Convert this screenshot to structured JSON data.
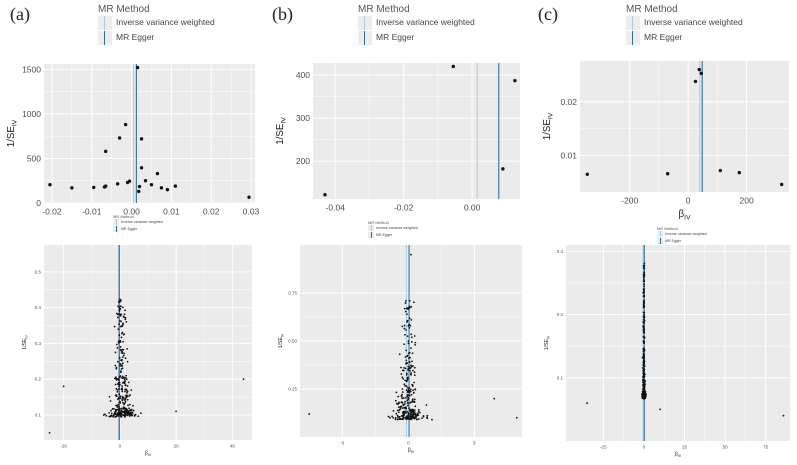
{
  "panel_labels": [
    "(a)",
    "(b)",
    "(c)"
  ],
  "colors": {
    "panel_bg": "#ebebeb",
    "grid": "#ffffff",
    "point": "#111111",
    "ivw_line": "#a6cde4",
    "egger_line": "#2e6e9e"
  },
  "legend": {
    "title": "MR Method",
    "items": [
      "Inverse variance weighted",
      "MR Egger"
    ]
  },
  "chart_data": [
    {
      "type": "scatter",
      "panel": "(a)-top",
      "title": "",
      "xlabel": "",
      "ylabel": "1/SE_IV",
      "ylabel_main": "1/SE",
      "ylabel_sub": "IV",
      "xlim": [
        -0.022,
        0.031
      ],
      "ylim": [
        0,
        1560
      ],
      "xticks": [
        -0.02,
        -0.01,
        0.0,
        0.01,
        0.02,
        0.03
      ],
      "xtick_labels": [
        "-0.02",
        "-0.01",
        "0.00",
        "0.01",
        "0.02",
        "0.03"
      ],
      "yticks": [
        0,
        500,
        1000,
        1500
      ],
      "ytick_labels": [
        "0",
        "500",
        "1000",
        "1500"
      ],
      "lines": [
        {
          "method": "ivw",
          "x": 0.0005
        },
        {
          "method": "egger",
          "x": 0.0012
        }
      ],
      "points": [
        [
          -0.0205,
          205
        ],
        [
          -0.015,
          170
        ],
        [
          -0.0095,
          175
        ],
        [
          -0.0068,
          180
        ],
        [
          -0.0065,
          580
        ],
        [
          -0.0065,
          190
        ],
        [
          -0.0035,
          215
        ],
        [
          -0.003,
          730
        ],
        [
          -0.0015,
          880
        ],
        [
          -0.001,
          230
        ],
        [
          -0.0005,
          245
        ],
        [
          0.0015,
          1520
        ],
        [
          0.0018,
          130
        ],
        [
          0.002,
          185
        ],
        [
          0.0025,
          395
        ],
        [
          0.0025,
          720
        ],
        [
          0.0035,
          250
        ],
        [
          0.005,
          205
        ],
        [
          0.0065,
          330
        ],
        [
          0.0075,
          170
        ],
        [
          0.009,
          150
        ],
        [
          0.011,
          190
        ],
        [
          0.0295,
          65
        ]
      ]
    },
    {
      "type": "scatter",
      "panel": "(b)-top",
      "title": "",
      "xlabel": "",
      "ylabel": "1/SE_IV",
      "ylabel_main": "1/SE",
      "ylabel_sub": "IV",
      "xlim": [
        -0.0465,
        0.014
      ],
      "ylim": [
        112,
        428
      ],
      "xticks": [
        -0.04,
        -0.02,
        0.0
      ],
      "xtick_labels": [
        "-0.04",
        "-0.02",
        "0.00"
      ],
      "yticks": [
        200,
        300,
        400
      ],
      "ytick_labels": [
        "200",
        "300",
        "400"
      ],
      "lines": [
        {
          "method": "ivw",
          "x": 0.0015
        },
        {
          "method": "egger",
          "x": 0.0078
        }
      ],
      "points": [
        [
          -0.043,
          122
        ],
        [
          -0.0055,
          420
        ],
        [
          0.009,
          182
        ],
        [
          0.0125,
          387
        ]
      ]
    },
    {
      "type": "scatter",
      "panel": "(c)-top",
      "title": "",
      "xlabel": "β_IV",
      "xlabel_main": "β",
      "xlabel_sub": "IV",
      "ylabel": "1/SE_IV",
      "ylabel_main": "1/SE",
      "ylabel_sub": "IV",
      "xlim": [
        -370,
        345
      ],
      "ylim": [
        0.0032,
        0.0276
      ],
      "xticks": [
        -200,
        0,
        200
      ],
      "xtick_labels": [
        "-200",
        "0",
        "200"
      ],
      "yticks": [
        0.01,
        0.02
      ],
      "ytick_labels": [
        "0.01",
        "0.02"
      ],
      "lines": [
        {
          "method": "ivw",
          "x": 40
        },
        {
          "method": "egger",
          "x": 48
        }
      ],
      "points": [
        [
          -345,
          0.0065
        ],
        [
          -70,
          0.0066
        ],
        [
          25,
          0.0238
        ],
        [
          38,
          0.026
        ],
        [
          45,
          0.0253
        ],
        [
          110,
          0.0072
        ],
        [
          175,
          0.0068
        ],
        [
          320,
          0.0046
        ]
      ]
    },
    {
      "type": "scatter",
      "panel": "(a)-bottom",
      "title": "",
      "xlabel": "β_IV",
      "xlabel_main": "β",
      "xlabel_sub": "IV",
      "ylabel": "1/SE_IV",
      "ylabel_main": "1/SE",
      "ylabel_sub": "IV",
      "xlim": [
        -27,
        47
      ],
      "ylim": [
        0.03,
        0.575
      ],
      "xticks": [
        -20,
        0,
        20,
        40
      ],
      "xtick_labels": [
        "-20",
        "0",
        "20",
        "40"
      ],
      "yticks": [
        0.1,
        0.2,
        0.3,
        0.4,
        0.5
      ],
      "ytick_labels": [
        "0.1",
        "0.2",
        "0.3",
        "0.4",
        "0.5"
      ],
      "lines": [
        {
          "method": "ivw",
          "x": -0.5
        },
        {
          "method": "egger",
          "x": -0.2
        }
      ],
      "cloud": {
        "n": 330,
        "center": 0.5,
        "spread": 7.5,
        "base": 0.1,
        "peak": 0.42,
        "seed": 11
      },
      "points": [
        [
          -25,
          0.05
        ],
        [
          44,
          0.2
        ],
        [
          -20,
          0.18
        ],
        [
          20,
          0.11
        ]
      ]
    },
    {
      "type": "scatter",
      "panel": "(b)-bottom",
      "title": "",
      "xlabel": "β_IV",
      "xlabel_main": "β",
      "xlabel_sub": "IV",
      "ylabel": "1/SE_IV",
      "ylabel_main": "1/SE",
      "ylabel_sub": "IV",
      "xlim": [
        -8.2,
        8.6
      ],
      "ylim": [
        0.0,
        1.0
      ],
      "xticks": [
        -5,
        0,
        5
      ],
      "xtick_labels": [
        "-5",
        "0",
        "5"
      ],
      "yticks": [
        0.25,
        0.5,
        0.75
      ],
      "ytick_labels": [
        "0.25",
        "0.50",
        "0.75"
      ],
      "lines": [
        {
          "method": "ivw",
          "x": -0.15
        },
        {
          "method": "egger",
          "x": 0.05
        }
      ],
      "cloud": {
        "n": 300,
        "center": 0.0,
        "spread": 1.9,
        "base": 0.1,
        "peak": 0.72,
        "seed": 23
      },
      "points": [
        [
          0.2,
          0.95
        ],
        [
          -7.5,
          0.12
        ],
        [
          8.2,
          0.1
        ],
        [
          6.5,
          0.2
        ]
      ]
    },
    {
      "type": "scatter",
      "panel": "(c)-bottom",
      "title": "",
      "xlabel": "β_IV",
      "xlabel_main": "β",
      "xlabel_sub": "IV",
      "ylabel": "1/SE_IV",
      "ylabel_main": "1/SE",
      "ylabel_sub": "IV",
      "xlim": [
        -48,
        90
      ],
      "ylim": [
        0.0,
        0.31
      ],
      "xticks": [
        -25,
        0,
        25,
        50,
        75
      ],
      "xtick_labels": [
        "-25",
        "0",
        "25",
        "50",
        "75"
      ],
      "yticks": [
        0.1,
        0.2,
        0.3
      ],
      "ytick_labels": [
        "0.1",
        "0.2",
        "0.3"
      ],
      "lines": [
        {
          "method": "ivw",
          "x": -0.5
        },
        {
          "method": "egger",
          "x": 0.2
        }
      ],
      "cloud": {
        "n": 320,
        "center": 0.0,
        "spread": 1.6,
        "base": 0.07,
        "peak": 0.28,
        "seed": 37
      },
      "points": [
        [
          -35,
          0.06
        ],
        [
          86,
          0.04
        ],
        [
          10,
          0.05
        ]
      ]
    }
  ]
}
